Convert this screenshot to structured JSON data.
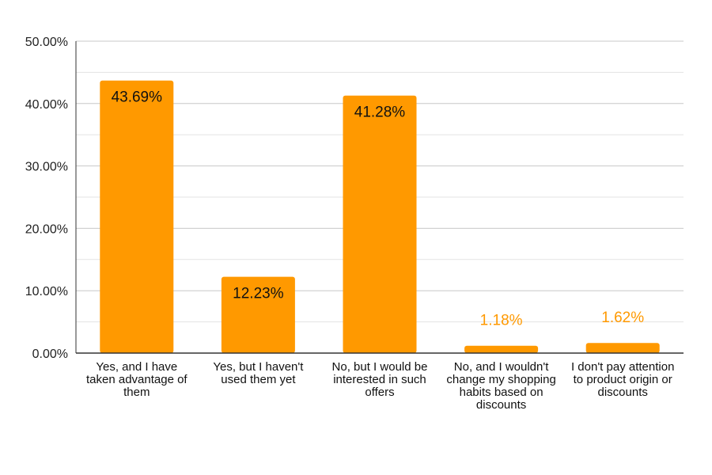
{
  "chart_data": {
    "type": "bar",
    "title": "",
    "xlabel": "",
    "ylabel": "",
    "categories": [
      "Yes, and I have taken advantage of them",
      "Yes, but I haven't used them yet",
      "No, but I would be interested in such offers",
      "No, and I wouldn't change my shopping habits based on discounts",
      "I don't pay attention to product origin or discounts"
    ],
    "values": [
      43.69,
      12.23,
      41.28,
      1.18,
      1.62
    ],
    "data_labels": [
      "43.69%",
      "12.23%",
      "41.28%",
      "1.18%",
      "1.62%"
    ],
    "ylim": [
      0,
      50
    ],
    "yticks": [
      0,
      10,
      20,
      30,
      40,
      50
    ],
    "ytick_labels": [
      "0.00%",
      "10.00%",
      "20.00%",
      "30.00%",
      "40.00%",
      "50.00%"
    ],
    "grid": true,
    "legend": "none",
    "bar_color": "#FF9900",
    "label_color_inside": "#111111",
    "label_color_outside": "#FF9900"
  }
}
